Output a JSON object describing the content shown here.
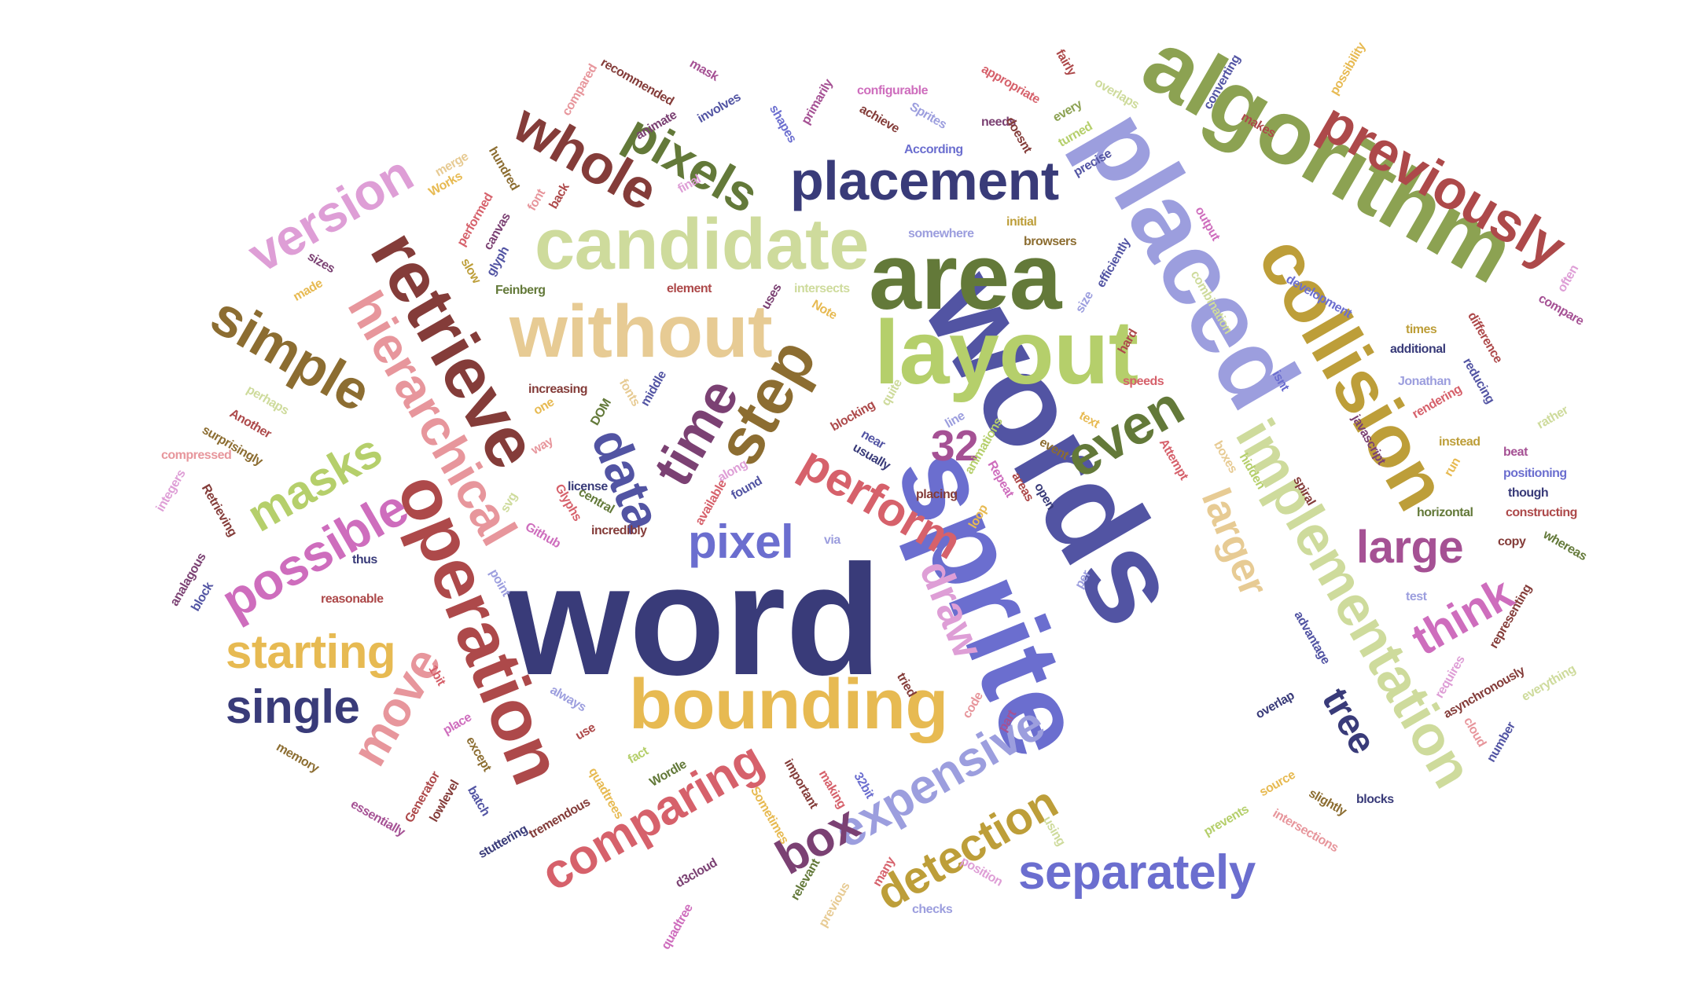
{
  "palette": {
    "navy": "#393b79",
    "indigo": "#5254a3",
    "periwinkle": "#6b6ecf",
    "lavender": "#9c9ede",
    "olive": "#637939",
    "moss": "#8ca252",
    "lime": "#b5cf6b",
    "sage": "#cedb9c",
    "bronze": "#8c6d31",
    "mustard": "#bd9e39",
    "gold": "#e7ba52",
    "wheat": "#e7cb94",
    "maroon": "#843c39",
    "brick": "#ad494a",
    "rose": "#d6616b",
    "salmon": "#e7969c",
    "plum": "#7b4173",
    "mauve": "#a55194",
    "orchid": "#ce6dbd",
    "pink": "#de9ed6"
  },
  "words": [
    {
      "text": "word",
      "color": "#393b79"
    },
    {
      "text": "words",
      "color": "#5254a3"
    },
    {
      "text": "sprite",
      "color": "#6b6ecf"
    },
    {
      "text": "placed",
      "color": "#9c9ede"
    },
    {
      "text": "algorithm",
      "color": "#8ca252"
    },
    {
      "text": "area",
      "color": "#637939"
    },
    {
      "text": "layout",
      "color": "#b5cf6b"
    },
    {
      "text": "candidate",
      "color": "#cedb9c"
    },
    {
      "text": "without",
      "color": "#e7cb94"
    },
    {
      "text": "collision",
      "color": "#bd9e39"
    },
    {
      "text": "retrieve",
      "color": "#843c39"
    },
    {
      "text": "operation",
      "color": "#ad494a"
    },
    {
      "text": "bounding",
      "color": "#e7ba52"
    },
    {
      "text": "implementation",
      "color": "#cedb9c"
    },
    {
      "text": "previously",
      "color": "#ad494a"
    },
    {
      "text": "placement",
      "color": "#393b79"
    },
    {
      "text": "hierarchical",
      "color": "#e7969c"
    },
    {
      "text": "pixels",
      "color": "#637939"
    },
    {
      "text": "whole",
      "color": "#843c39"
    },
    {
      "text": "version",
      "color": "#de9ed6"
    },
    {
      "text": "simple",
      "color": "#8c6d31"
    },
    {
      "text": "step",
      "color": "#8c6d31"
    },
    {
      "text": "time",
      "color": "#7b4173"
    },
    {
      "text": "data",
      "color": "#5254a3"
    },
    {
      "text": "32",
      "color": "#a55194"
    },
    {
      "text": "even",
      "color": "#637939"
    },
    {
      "text": "perform",
      "color": "#d6616b"
    },
    {
      "text": "pixel",
      "color": "#6b6ecf"
    },
    {
      "text": "masks",
      "color": "#b5cf6b"
    },
    {
      "text": "possible",
      "color": "#ce6dbd"
    },
    {
      "text": "starting",
      "color": "#e7ba52"
    },
    {
      "text": "single",
      "color": "#393b79"
    },
    {
      "text": "move",
      "color": "#e7969c"
    },
    {
      "text": "draw",
      "color": "#de9ed6"
    },
    {
      "text": "expensive",
      "color": "#9c9ede"
    },
    {
      "text": "comparing",
      "color": "#d6616b"
    },
    {
      "text": "box",
      "color": "#7b4173"
    },
    {
      "text": "detection",
      "color": "#bd9e39"
    },
    {
      "text": "separately",
      "color": "#6b6ecf"
    },
    {
      "text": "larger",
      "color": "#e7cb94"
    },
    {
      "text": "large",
      "color": "#a55194"
    },
    {
      "text": "think",
      "color": "#ce6dbd"
    },
    {
      "text": "tree",
      "color": "#393b79"
    },
    {
      "text": "compared",
      "color": "#e7969c"
    },
    {
      "text": "recommended",
      "color": "#843c39"
    },
    {
      "text": "mask",
      "color": "#a55194"
    },
    {
      "text": "animate",
      "color": "#7b4173"
    },
    {
      "text": "involves",
      "color": "#5254a3"
    },
    {
      "text": "shapes",
      "color": "#6b6ecf"
    },
    {
      "text": "primarily",
      "color": "#a55194"
    },
    {
      "text": "configurable",
      "color": "#ce6dbd"
    },
    {
      "text": "appropriate",
      "color": "#d6616b"
    },
    {
      "text": "fairly",
      "color": "#ad494a"
    },
    {
      "text": "overlaps",
      "color": "#cedb9c"
    },
    {
      "text": "converting",
      "color": "#5254a3"
    },
    {
      "text": "possibility",
      "color": "#e7ba52"
    },
    {
      "text": "every",
      "color": "#8ca252"
    },
    {
      "text": "turned",
      "color": "#b5cf6b"
    },
    {
      "text": "achieve",
      "color": "#843c39"
    },
    {
      "text": "Sprites",
      "color": "#9c9ede"
    },
    {
      "text": "needs",
      "color": "#7b4173"
    },
    {
      "text": "doesnt",
      "color": "#843c39"
    },
    {
      "text": "makes",
      "color": "#ad494a"
    },
    {
      "text": "According",
      "color": "#6b6ecf"
    },
    {
      "text": "hundred",
      "color": "#8c6d31"
    },
    {
      "text": "merge",
      "color": "#e7cb94"
    },
    {
      "text": "Works",
      "color": "#e7ba52"
    },
    {
      "text": "precise",
      "color": "#5254a3"
    },
    {
      "text": "back",
      "color": "#ad494a"
    },
    {
      "text": "font",
      "color": "#e7969c"
    },
    {
      "text": "final",
      "color": "#de9ed6"
    },
    {
      "text": "performed",
      "color": "#d6616b"
    },
    {
      "text": "canvas",
      "color": "#7b4173"
    },
    {
      "text": "somewhere",
      "color": "#9c9ede"
    },
    {
      "text": "initial",
      "color": "#bd9e39"
    },
    {
      "text": "browsers",
      "color": "#8c6d31"
    },
    {
      "text": "output",
      "color": "#ce6dbd"
    },
    {
      "text": "efficiently",
      "color": "#5254a3"
    },
    {
      "text": "glyph",
      "color": "#5254a3"
    },
    {
      "text": "sizes",
      "color": "#7b4173"
    },
    {
      "text": "slow",
      "color": "#bd9e39"
    },
    {
      "text": "made",
      "color": "#e7ba52"
    },
    {
      "text": "element",
      "color": "#ad494a"
    },
    {
      "text": "Feinberg",
      "color": "#637939"
    },
    {
      "text": "intersects",
      "color": "#cedb9c"
    },
    {
      "text": "uses",
      "color": "#7b4173"
    },
    {
      "text": "Note",
      "color": "#e7ba52"
    },
    {
      "text": "size",
      "color": "#9c9ede"
    },
    {
      "text": "hard",
      "color": "#ad494a"
    },
    {
      "text": "development",
      "color": "#6b6ecf"
    },
    {
      "text": "combination",
      "color": "#cedb9c"
    },
    {
      "text": "times",
      "color": "#bd9e39"
    },
    {
      "text": "additional",
      "color": "#393b79"
    },
    {
      "text": "difference",
      "color": "#ad494a"
    },
    {
      "text": "compare",
      "color": "#a55194"
    },
    {
      "text": "often",
      "color": "#de9ed6"
    },
    {
      "text": "speeds",
      "color": "#d6616b"
    },
    {
      "text": "isnt",
      "color": "#6b6ecf"
    },
    {
      "text": "Jonathan",
      "color": "#9c9ede"
    },
    {
      "text": "reducing",
      "color": "#5254a3"
    },
    {
      "text": "increasing",
      "color": "#843c39"
    },
    {
      "text": "fonts",
      "color": "#e7cb94"
    },
    {
      "text": "middle",
      "color": "#5254a3"
    },
    {
      "text": "DOM",
      "color": "#637939"
    },
    {
      "text": "one",
      "color": "#e7ba52"
    },
    {
      "text": "perhaps",
      "color": "#cedb9c"
    },
    {
      "text": "Another",
      "color": "#ad494a"
    },
    {
      "text": "surprisingly",
      "color": "#8c6d31"
    },
    {
      "text": "compressed",
      "color": "#e7969c"
    },
    {
      "text": "integers",
      "color": "#de9ed6"
    },
    {
      "text": "Retrieving",
      "color": "#843c39"
    },
    {
      "text": "analagous",
      "color": "#7b4173"
    },
    {
      "text": "block",
      "color": "#5254a3"
    },
    {
      "text": "thus",
      "color": "#393b79"
    },
    {
      "text": "reasonable",
      "color": "#ad494a"
    },
    {
      "text": "1bit",
      "color": "#d6616b"
    },
    {
      "text": "always",
      "color": "#9c9ede"
    },
    {
      "text": "place",
      "color": "#ce6dbd"
    },
    {
      "text": "memory",
      "color": "#8c6d31"
    },
    {
      "text": "essentially",
      "color": "#a55194"
    },
    {
      "text": "Generator",
      "color": "#ad494a"
    },
    {
      "text": "lowlevel",
      "color": "#843c39"
    },
    {
      "text": "batch",
      "color": "#5254a3"
    },
    {
      "text": "stuttering",
      "color": "#393b79"
    },
    {
      "text": "tremendous",
      "color": "#843c39"
    },
    {
      "text": "quadtrees",
      "color": "#e7ba52"
    },
    {
      "text": "except",
      "color": "#8c6d31"
    },
    {
      "text": "fact",
      "color": "#b5cf6b"
    },
    {
      "text": "Wordle",
      "color": "#637939"
    },
    {
      "text": "use",
      "color": "#ad494a"
    },
    {
      "text": "d3cloud",
      "color": "#7b4173"
    },
    {
      "text": "quadtree",
      "color": "#ce6dbd"
    },
    {
      "text": "important",
      "color": "#843c39"
    },
    {
      "text": "Sometimes",
      "color": "#e7ba52"
    },
    {
      "text": "making",
      "color": "#d6616b"
    },
    {
      "text": "32bit",
      "color": "#6b6ecf"
    },
    {
      "text": "relevant",
      "color": "#637939"
    },
    {
      "text": "previous",
      "color": "#e7cb94"
    },
    {
      "text": "many",
      "color": "#d6616b"
    },
    {
      "text": "checks",
      "color": "#9c9ede"
    },
    {
      "text": "position",
      "color": "#de9ed6"
    },
    {
      "text": "using",
      "color": "#cedb9c"
    },
    {
      "text": "prevents",
      "color": "#b5cf6b"
    },
    {
      "text": "intersections",
      "color": "#e7969c"
    },
    {
      "text": "slightly",
      "color": "#8c6d31"
    },
    {
      "text": "blocks",
      "color": "#393b79"
    },
    {
      "text": "source",
      "color": "#e7ba52"
    },
    {
      "text": "overlap",
      "color": "#393b79"
    },
    {
      "text": "advantage",
      "color": "#5254a3"
    },
    {
      "text": "test",
      "color": "#9c9ede"
    },
    {
      "text": "representing",
      "color": "#843c39"
    },
    {
      "text": "requires",
      "color": "#de9ed6"
    },
    {
      "text": "asynchronously",
      "color": "#843c39"
    },
    {
      "text": "everything",
      "color": "#cedb9c"
    },
    {
      "text": "cloud",
      "color": "#e7969c"
    },
    {
      "text": "number",
      "color": "#5254a3"
    },
    {
      "text": "copy",
      "color": "#843c39"
    },
    {
      "text": "whereas",
      "color": "#637939"
    },
    {
      "text": "constructing",
      "color": "#ad494a"
    },
    {
      "text": "though",
      "color": "#393b79"
    },
    {
      "text": "positioning",
      "color": "#6b6ecf"
    },
    {
      "text": "horizontal",
      "color": "#637939"
    },
    {
      "text": "beat",
      "color": "#a55194"
    },
    {
      "text": "instead",
      "color": "#bd9e39"
    },
    {
      "text": "rather",
      "color": "#cedb9c"
    },
    {
      "text": "rendering",
      "color": "#d6616b"
    },
    {
      "text": "javascript",
      "color": "#7b4173"
    },
    {
      "text": "run",
      "color": "#e7ba52"
    },
    {
      "text": "spiral",
      "color": "#843c39"
    },
    {
      "text": "hidden",
      "color": "#b5cf6b"
    },
    {
      "text": "boxes",
      "color": "#e7cb94"
    },
    {
      "text": "Attempt",
      "color": "#d6616b"
    },
    {
      "text": "text",
      "color": "#e7ba52"
    },
    {
      "text": "open",
      "color": "#393b79"
    },
    {
      "text": "areas",
      "color": "#ad494a"
    },
    {
      "text": "event",
      "color": "#8c6d31"
    },
    {
      "text": "Repeat",
      "color": "#ce6dbd"
    },
    {
      "text": "animations",
      "color": "#b5cf6b"
    },
    {
      "text": "line",
      "color": "#9c9ede"
    },
    {
      "text": "quite",
      "color": "#cedb9c"
    },
    {
      "text": "blocking",
      "color": "#ad494a"
    },
    {
      "text": "near",
      "color": "#5254a3"
    },
    {
      "text": "usually",
      "color": "#393b79"
    },
    {
      "text": "placing",
      "color": "#843c39"
    },
    {
      "text": "loop",
      "color": "#e7ba52"
    },
    {
      "text": "found",
      "color": "#5254a3"
    },
    {
      "text": "along",
      "color": "#de9ed6"
    },
    {
      "text": "available",
      "color": "#d6616b"
    },
    {
      "text": "incredibly",
      "color": "#843c39"
    },
    {
      "text": "via",
      "color": "#9c9ede"
    },
    {
      "text": "point",
      "color": "#9c9ede"
    },
    {
      "text": "per",
      "color": "#9c9ede"
    },
    {
      "text": "code",
      "color": "#e7969c"
    },
    {
      "text": "part",
      "color": "#a55194"
    },
    {
      "text": "tried",
      "color": "#843c39"
    },
    {
      "text": "way",
      "color": "#e7969c"
    },
    {
      "text": "license",
      "color": "#393b79"
    },
    {
      "text": "central",
      "color": "#637939"
    },
    {
      "text": "Glyphs",
      "color": "#d6616b"
    },
    {
      "text": "Github",
      "color": "#ce6dbd"
    },
    {
      "text": "svg",
      "color": "#cedb9c"
    }
  ]
}
